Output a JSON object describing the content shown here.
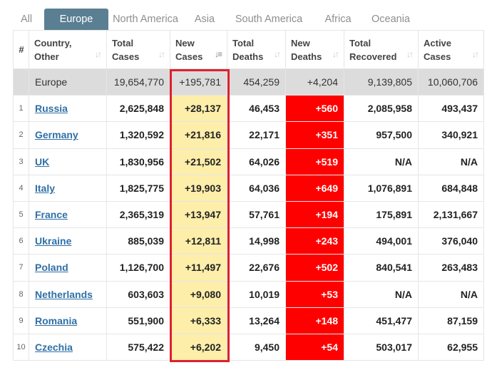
{
  "tabs": [
    "All",
    "Europe",
    "North America",
    "Asia",
    "South America",
    "Africa",
    "Oceania"
  ],
  "active_tab": "Europe",
  "headers": {
    "index": "#",
    "country": [
      "Country,",
      "Other"
    ],
    "total_cases": [
      "Total",
      "Cases"
    ],
    "new_cases": [
      "New",
      "Cases"
    ],
    "total_deaths": [
      "Total",
      "Deaths"
    ],
    "new_deaths": [
      "New",
      "Deaths"
    ],
    "total_recovered": [
      "Total",
      "Recovered"
    ],
    "active_cases": [
      "Active",
      "Cases"
    ]
  },
  "total_row": {
    "country": "Europe",
    "total_cases": "19,654,770",
    "new_cases": "+195,781",
    "total_deaths": "454,259",
    "new_deaths": "+4,204",
    "total_recovered": "9,139,805",
    "active_cases": "10,060,706"
  },
  "rows": [
    {
      "idx": "1",
      "country": "Russia",
      "total_cases": "2,625,848",
      "new_cases": "+28,137",
      "total_deaths": "46,453",
      "new_deaths": "+560",
      "total_recovered": "2,085,958",
      "active_cases": "493,437"
    },
    {
      "idx": "2",
      "country": "Germany",
      "total_cases": "1,320,592",
      "new_cases": "+21,816",
      "total_deaths": "22,171",
      "new_deaths": "+351",
      "total_recovered": "957,500",
      "active_cases": "340,921"
    },
    {
      "idx": "3",
      "country": "UK",
      "total_cases": "1,830,956",
      "new_cases": "+21,502",
      "total_deaths": "64,026",
      "new_deaths": "+519",
      "total_recovered": "N/A",
      "active_cases": "N/A"
    },
    {
      "idx": "4",
      "country": "Italy",
      "total_cases": "1,825,775",
      "new_cases": "+19,903",
      "total_deaths": "64,036",
      "new_deaths": "+649",
      "total_recovered": "1,076,891",
      "active_cases": "684,848"
    },
    {
      "idx": "5",
      "country": "France",
      "total_cases": "2,365,319",
      "new_cases": "+13,947",
      "total_deaths": "57,761",
      "new_deaths": "+194",
      "total_recovered": "175,891",
      "active_cases": "2,131,667"
    },
    {
      "idx": "6",
      "country": "Ukraine",
      "total_cases": "885,039",
      "new_cases": "+12,811",
      "total_deaths": "14,998",
      "new_deaths": "+243",
      "total_recovered": "494,001",
      "active_cases": "376,040"
    },
    {
      "idx": "7",
      "country": "Poland",
      "total_cases": "1,126,700",
      "new_cases": "+11,497",
      "total_deaths": "22,676",
      "new_deaths": "+502",
      "total_recovered": "840,541",
      "active_cases": "263,483"
    },
    {
      "idx": "8",
      "country": "Netherlands",
      "total_cases": "603,603",
      "new_cases": "+9,080",
      "total_deaths": "10,019",
      "new_deaths": "+53",
      "total_recovered": "N/A",
      "active_cases": "N/A"
    },
    {
      "idx": "9",
      "country": "Romania",
      "total_cases": "551,900",
      "new_cases": "+6,333",
      "total_deaths": "13,264",
      "new_deaths": "+148",
      "total_recovered": "451,477",
      "active_cases": "87,159"
    },
    {
      "idx": "10",
      "country": "Czechia",
      "total_cases": "575,422",
      "new_cases": "+6,202",
      "total_deaths": "9,450",
      "new_deaths": "+54",
      "total_recovered": "503,017",
      "active_cases": "62,955"
    }
  ],
  "colors": {
    "active_tab_bg": "#5a7f93",
    "new_cases_bg": "#fdeeaa",
    "new_deaths_bg": "#ff0000",
    "total_row_bg": "#dcdcdc",
    "link": "#2f6fa6",
    "highlight_border": "#e0202e"
  },
  "icons": {
    "sort": "sort-arrows-icon",
    "sort_active": "sort-desc-icon"
  }
}
